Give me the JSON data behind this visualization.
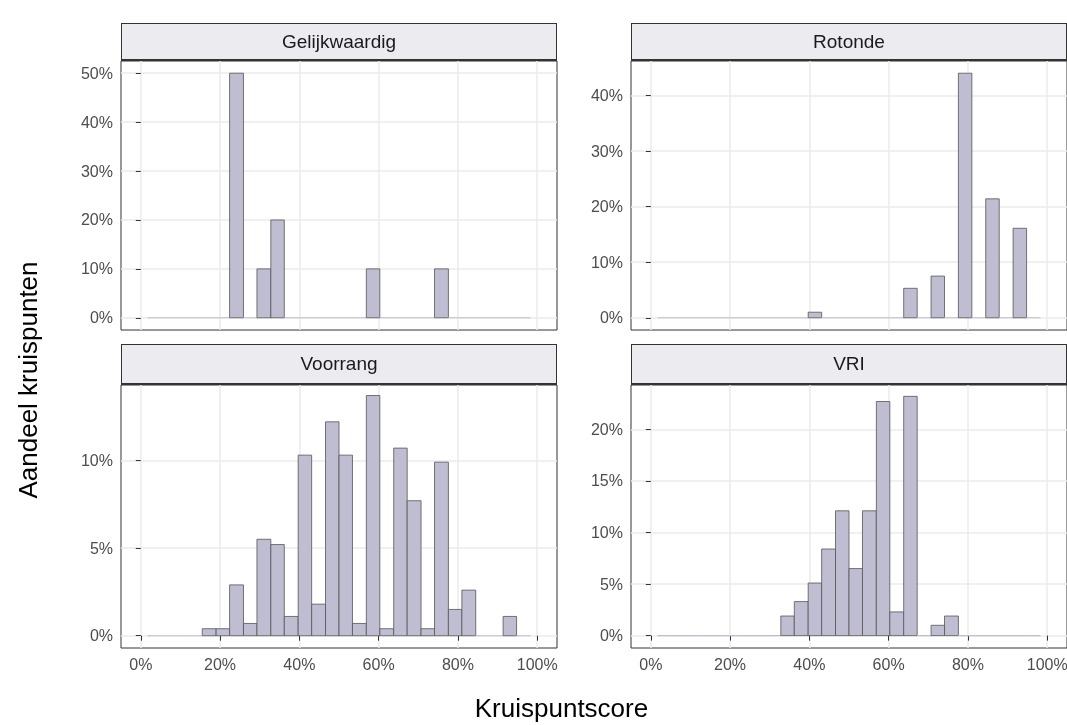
{
  "chart_data": [
    {
      "type": "histogram",
      "title": "Gelijkwaardig",
      "ylabel": "Aandeel kruispunten",
      "color": "#bfbdd1",
      "bins": [
        1.7,
        5.2,
        8.6,
        12.1,
        15.5,
        19.0,
        22.4,
        25.9,
        29.3,
        32.8,
        36.2,
        39.7,
        43.1,
        46.6,
        50.0,
        53.4,
        56.9,
        60.3,
        63.8,
        67.2,
        70.7,
        74.1,
        77.6,
        81.0,
        84.5,
        87.9,
        91.4,
        94.8,
        98.3
      ],
      "values": [
        0,
        0,
        0,
        0,
        0,
        0,
        50,
        0,
        10,
        20,
        0,
        0,
        0,
        0,
        0,
        0,
        10,
        0,
        0,
        0,
        0,
        10,
        0,
        0,
        0,
        0,
        0,
        0
      ],
      "xlim": [
        -5,
        105
      ],
      "xticks": [
        {
          "value": 0,
          "label": null
        },
        {
          "value": 20,
          "label": null
        },
        {
          "value": 40,
          "label": null
        },
        {
          "value": 60,
          "label": null
        },
        {
          "value": 80,
          "label": null
        },
        {
          "value": 100,
          "label": null
        }
      ],
      "ylim": [
        -2.5,
        52.5
      ],
      "yticks": [
        {
          "value": 0,
          "label": "0%"
        },
        {
          "value": 10,
          "label": "10%"
        },
        {
          "value": 20,
          "label": "20%"
        },
        {
          "value": 30,
          "label": "30%"
        },
        {
          "value": 40,
          "label": "40%"
        },
        {
          "value": 50,
          "label": "50%"
        }
      ],
      "grid": true,
      "tick_labels": "y"
    },
    {
      "type": "histogram",
      "title": "Rotonde",
      "color": "#bfbdd1",
      "bins": [
        1.7,
        5.2,
        8.6,
        12.1,
        15.5,
        19.0,
        22.4,
        25.9,
        29.3,
        32.8,
        36.2,
        39.7,
        43.1,
        46.6,
        50.0,
        53.4,
        56.9,
        60.3,
        63.8,
        67.2,
        70.7,
        74.1,
        77.6,
        81.0,
        84.5,
        87.9,
        91.4,
        94.8,
        98.3
      ],
      "values": [
        0,
        0,
        0,
        0,
        0,
        0,
        0,
        0,
        0,
        0,
        0,
        1.0,
        0,
        0,
        0,
        0,
        0,
        0,
        5.3,
        0,
        7.5,
        0,
        44.0,
        0,
        21.4,
        0,
        16.1,
        0
      ],
      "xlim": [
        -5,
        105
      ],
      "xticks": [
        {
          "value": 0,
          "label": null
        },
        {
          "value": 20,
          "label": null
        },
        {
          "value": 40,
          "label": null
        },
        {
          "value": 60,
          "label": null
        },
        {
          "value": 80,
          "label": null
        },
        {
          "value": 100,
          "label": null
        }
      ],
      "ylim": [
        -2.2,
        46.2
      ],
      "yticks": [
        {
          "value": 0,
          "label": "0%"
        },
        {
          "value": 10,
          "label": "10%"
        },
        {
          "value": 20,
          "label": "20%"
        },
        {
          "value": 30,
          "label": "30%"
        },
        {
          "value": 40,
          "label": "40%"
        }
      ],
      "grid": true,
      "tick_labels": "y"
    },
    {
      "type": "histogram",
      "title": "Voorrang",
      "xlabel": "Kruispuntscore",
      "color": "#bfbdd1",
      "bins": [
        1.7,
        5.2,
        8.6,
        12.1,
        15.5,
        19.0,
        22.4,
        25.9,
        29.3,
        32.8,
        36.2,
        39.7,
        43.1,
        46.6,
        50.0,
        53.4,
        56.9,
        60.3,
        63.8,
        67.2,
        70.7,
        74.1,
        77.6,
        81.0,
        84.5,
        87.9,
        91.4,
        94.8,
        98.3
      ],
      "values": [
        0,
        0,
        0,
        0,
        0.4,
        0.4,
        2.9,
        0.7,
        5.5,
        5.2,
        1.1,
        10.3,
        1.8,
        12.2,
        10.3,
        0.7,
        13.7,
        0.4,
        10.7,
        7.7,
        0.4,
        9.9,
        1.5,
        2.6,
        0,
        0,
        1.1,
        0
      ],
      "xlim": [
        -5,
        105
      ],
      "xticks": [
        {
          "value": 0,
          "label": "0%"
        },
        {
          "value": 20,
          "label": "20%"
        },
        {
          "value": 40,
          "label": "40%"
        },
        {
          "value": 60,
          "label": "60%"
        },
        {
          "value": 80,
          "label": "80%"
        },
        {
          "value": 100,
          "label": "100%"
        }
      ],
      "ylim": [
        -0.7,
        14.3
      ],
      "yticks": [
        {
          "value": 0,
          "label": "0%"
        },
        {
          "value": 5,
          "label": "5%"
        },
        {
          "value": 10,
          "label": "10%"
        }
      ],
      "grid": true
    },
    {
      "type": "histogram",
      "title": "VRI",
      "color": "#bfbdd1",
      "bins": [
        1.7,
        5.2,
        8.6,
        12.1,
        15.5,
        19.0,
        22.4,
        25.9,
        29.3,
        32.8,
        36.2,
        39.7,
        43.1,
        46.6,
        50.0,
        53.4,
        56.9,
        60.3,
        63.8,
        67.2,
        70.7,
        74.1,
        77.6,
        81.0,
        84.5,
        87.9,
        91.4,
        94.8,
        98.3
      ],
      "values": [
        0,
        0,
        0,
        0,
        0,
        0,
        0,
        0,
        0,
        1.9,
        3.3,
        5.1,
        8.4,
        12.1,
        6.5,
        12.1,
        22.7,
        2.3,
        23.2,
        0,
        1.0,
        1.9,
        0,
        0,
        0,
        0,
        0,
        0
      ],
      "xlim": [
        -5,
        105
      ],
      "xticks": [
        {
          "value": 0,
          "label": "0%"
        },
        {
          "value": 20,
          "label": "20%"
        },
        {
          "value": 40,
          "label": "40%"
        },
        {
          "value": 60,
          "label": "60%"
        },
        {
          "value": 80,
          "label": "80%"
        },
        {
          "value": 100,
          "label": "100%"
        }
      ],
      "ylim": [
        -1.2,
        24.3
      ],
      "yticks": [
        {
          "value": 0,
          "label": "0%"
        },
        {
          "value": 5,
          "label": "5%"
        },
        {
          "value": 10,
          "label": "10%"
        },
        {
          "value": 15,
          "label": "15%"
        },
        {
          "value": 20,
          "label": "20%"
        }
      ],
      "grid": true
    }
  ]
}
